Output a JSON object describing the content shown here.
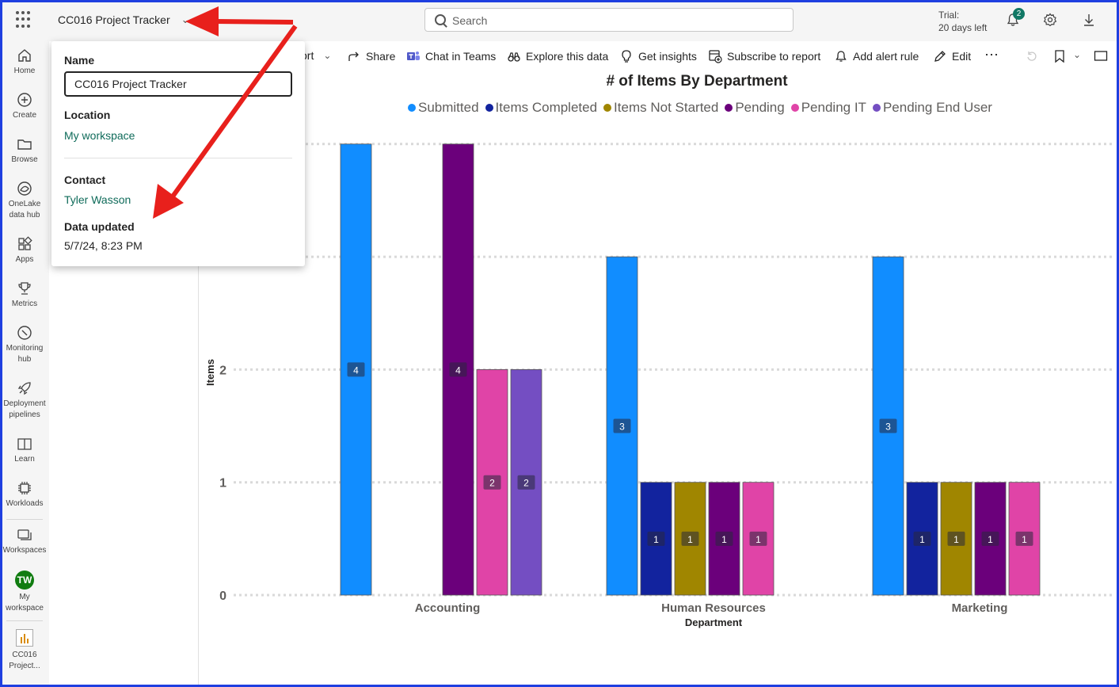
{
  "header": {
    "app_title": "CC016 Project Tracker",
    "search_placeholder": "Search",
    "trial_line1": "Trial:",
    "trial_line2": "20 days left",
    "notification_count": "2"
  },
  "nav": {
    "items": [
      {
        "label": "Home",
        "icon": "home-icon"
      },
      {
        "label": "Create",
        "icon": "create-icon"
      },
      {
        "label": "Browse",
        "icon": "folder-icon"
      },
      {
        "label": "OneLake data hub",
        "line1": "OneLake",
        "line2": "data hub",
        "icon": "onelake-icon"
      },
      {
        "label": "Apps",
        "icon": "apps-icon"
      },
      {
        "label": "Metrics",
        "icon": "trophy-icon"
      },
      {
        "label": "Monitoring hub",
        "line1": "Monitoring",
        "line2": "hub",
        "icon": "monitoring-icon"
      },
      {
        "label": "Deployment pipelines",
        "line1": "Deployment",
        "line2": "pipelines",
        "icon": "rocket-icon"
      },
      {
        "label": "Learn",
        "icon": "book-icon"
      },
      {
        "label": "Workloads",
        "icon": "workloads-icon"
      },
      {
        "label": "Workspaces",
        "icon": "workspaces-icon"
      },
      {
        "label": "My workspace",
        "line1": "My",
        "line2": "workspace",
        "avatar": "TW"
      },
      {
        "label": "CC016 Project...",
        "line1": "CC016",
        "line2": "Project...",
        "icon": "report-icon"
      }
    ]
  },
  "toolbar": {
    "export_partial": "ort",
    "share": "Share",
    "chat_in_teams": "Chat in Teams",
    "explore": "Explore this data",
    "insights": "Get insights",
    "subscribe": "Subscribe to report",
    "alert": "Add alert rule",
    "edit": "Edit",
    "more": "⋯"
  },
  "popup": {
    "name_label": "Name",
    "name_value": "CC016 Project Tracker",
    "location_label": "Location",
    "location_value": "My workspace",
    "contact_label": "Contact",
    "contact_value": "Tyler Wasson",
    "updated_label": "Data updated",
    "updated_value": "5/7/24, 8:23 PM"
  },
  "colors": {
    "submitted": "#118dff",
    "items_completed": "#12239e",
    "items_not_started": "#a08600",
    "pending": "#6b007b",
    "pending_it": "#e044a7",
    "pending_end_user": "#744ec2",
    "annotation_arrow": "#e8201c"
  },
  "chart_data": {
    "type": "bar",
    "title": "# of Items By Department",
    "xlabel": "Department",
    "ylabel": "Items",
    "categories": [
      "Accounting",
      "Human Resources",
      "Marketing"
    ],
    "series": [
      {
        "name": "Submitted",
        "values": [
          4,
          3,
          3
        ]
      },
      {
        "name": "Items Completed",
        "values": [
          null,
          1,
          1
        ]
      },
      {
        "name": "Items Not Started",
        "values": [
          null,
          1,
          1
        ]
      },
      {
        "name": "Pending",
        "values": [
          4,
          1,
          1
        ]
      },
      {
        "name": "Pending IT",
        "values": [
          2,
          1,
          1
        ]
      },
      {
        "name": "Pending End User",
        "values": [
          2,
          null,
          null
        ]
      }
    ],
    "yticks": [
      0,
      1,
      2
    ],
    "ylim": [
      0,
      4
    ],
    "legend_position": "top",
    "grid": true
  }
}
